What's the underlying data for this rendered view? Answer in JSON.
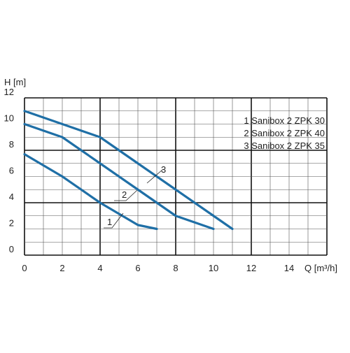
{
  "chart_data": {
    "type": "line",
    "ylabel": "H [m]",
    "xlabel": "Q [m³/h]",
    "xlim": [
      0,
      16
    ],
    "ylim": [
      0,
      12
    ],
    "x_ticks": [
      0,
      2,
      4,
      6,
      8,
      10,
      12,
      14
    ],
    "y_ticks": [
      0,
      2,
      4,
      6,
      8,
      10,
      12
    ],
    "grid": true,
    "legend": [
      "1 Sanibox 2 ZPK 30",
      "2 Sanibox 2 ZPK 40",
      "3 Sanibox 2 ZPK 35"
    ],
    "series_color": "#1f6fa6",
    "series": [
      {
        "label": "1",
        "x": [
          0,
          2,
          4,
          6,
          7
        ],
        "y": [
          7.7,
          6.0,
          4.0,
          2.3,
          2.0
        ]
      },
      {
        "label": "2",
        "x": [
          0,
          2,
          4,
          6,
          8,
          10
        ],
        "y": [
          10.0,
          9.0,
          7.0,
          5.0,
          3.0,
          2.0
        ]
      },
      {
        "label": "3",
        "x": [
          0,
          2,
          4,
          6,
          8,
          10,
          11
        ],
        "y": [
          11.0,
          10.0,
          9.0,
          7.0,
          5.0,
          3.0,
          2.0
        ]
      }
    ]
  }
}
